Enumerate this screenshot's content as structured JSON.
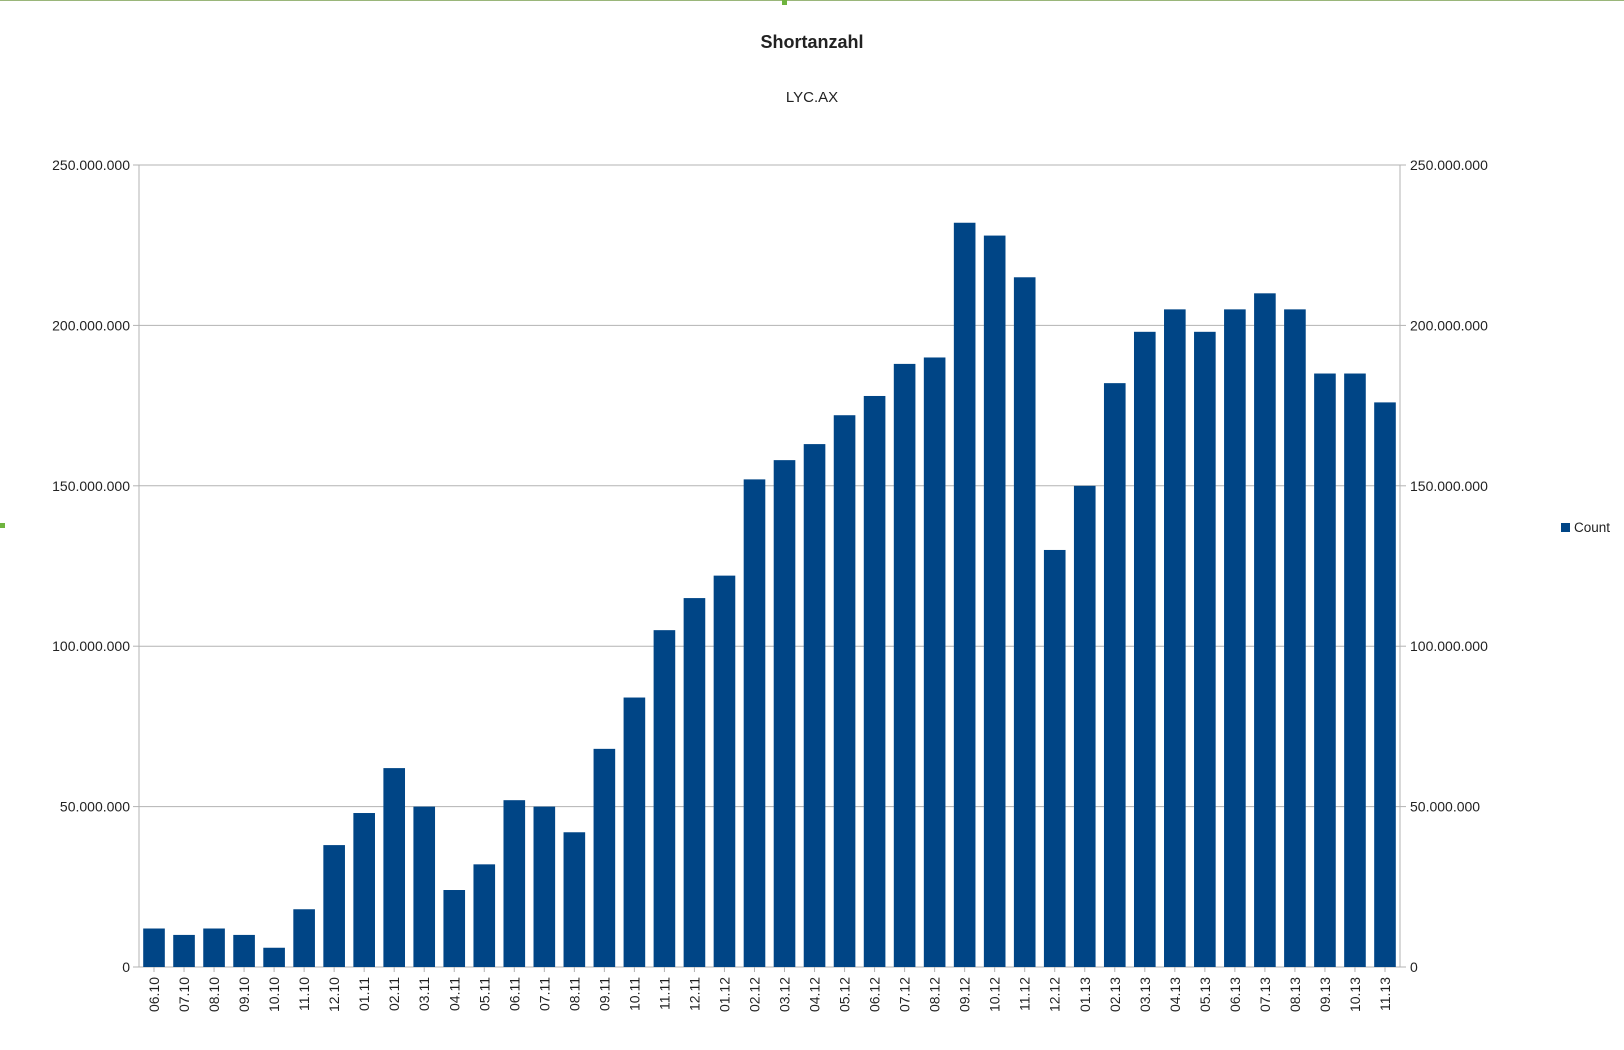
{
  "chart_data": {
    "type": "bar",
    "title": "Shortanzahl",
    "subtitle": "LYC.AX",
    "legend": {
      "label": "Count",
      "placement": "right"
    },
    "colors": {
      "bar": "#004586",
      "grid": "#b3b3b3"
    },
    "ylim": [
      0,
      250000000
    ],
    "y_ticks": [
      "0",
      "50.000.000",
      "100.000.000",
      "150.000.000",
      "200.000.000",
      "250.000.000"
    ],
    "y_axes": "left-and-right",
    "grid": true,
    "x_tick_labels": [
      "06.10",
      "07.10",
      "08.10",
      "09.10",
      "10.10",
      "11.10",
      "12.10",
      "01.11",
      "02.11",
      "03.11",
      "04.11",
      "05.11",
      "06.11",
      "07.11",
      "08.11",
      "09.11",
      "10.11",
      "11.11",
      "12.11",
      "01.12",
      "02.12",
      "03.12",
      "04.12",
      "05.12",
      "06.12",
      "07.12",
      "08.12",
      "09.12",
      "10.12",
      "11.12",
      "12.12",
      "01.13",
      "02.13",
      "03.13",
      "04.13",
      "05.13",
      "06.13",
      "07.13",
      "08.13",
      "09.13",
      "10.13",
      "11.13"
    ],
    "series": [
      {
        "name": "Count",
        "monthly_values": [
          12000000,
          10000000,
          12000000,
          10000000,
          6000000,
          18000000,
          38000000,
          48000000,
          62000000,
          50000000,
          24000000,
          32000000,
          52000000,
          50000000,
          42000000,
          68000000,
          84000000,
          105000000,
          115000000,
          122000000,
          152000000,
          158000000,
          163000000,
          172000000,
          178000000,
          188000000,
          190000000,
          232000000,
          228000000,
          215000000,
          130000000,
          150000000,
          182000000,
          198000000,
          205000000,
          198000000,
          205000000,
          210000000,
          205000000,
          185000000,
          185000000,
          176000000
        ]
      }
    ]
  }
}
